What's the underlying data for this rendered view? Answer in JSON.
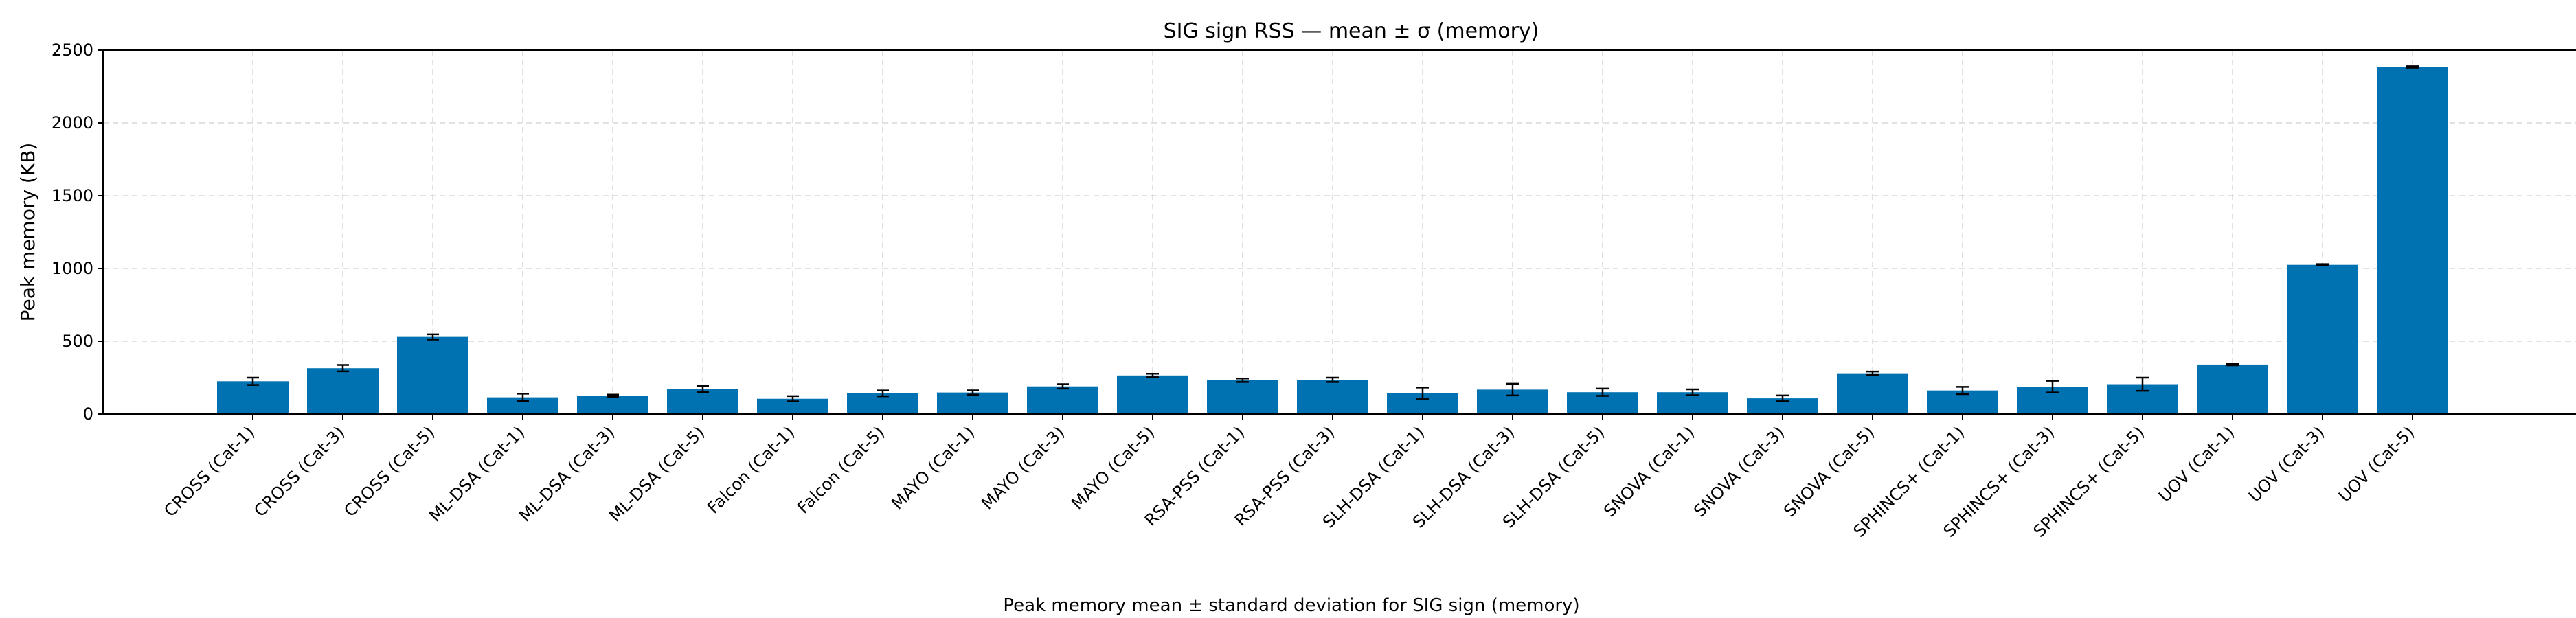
{
  "colors": {
    "bar": "#0072b2",
    "errorbar": "#000000",
    "grid": "#d9d9d9",
    "axis": "#000000",
    "background": "#ffffff"
  },
  "chart_data": {
    "type": "bar",
    "title": "SIG sign RSS — mean ± σ (memory)",
    "xlabel": "Peak memory mean ± standard deviation for SIG sign (memory)",
    "ylabel": "Peak memory (KB)",
    "ylim": [
      0,
      2500
    ],
    "yticks": [
      "0",
      "500",
      "1000",
      "1500",
      "2000",
      "2500"
    ],
    "grid": true,
    "legend": "none",
    "categories": [
      "CROSS (Cat-1)",
      "CROSS (Cat-3)",
      "CROSS (Cat-5)",
      "ML-DSA (Cat-1)",
      "ML-DSA (Cat-3)",
      "ML-DSA (Cat-5)",
      "Falcon (Cat-1)",
      "Falcon (Cat-5)",
      "MAYO (Cat-1)",
      "MAYO (Cat-3)",
      "MAYO (Cat-5)",
      "RSA-PSS (Cat-1)",
      "RSA-PSS (Cat-3)",
      "SLH-DSA (Cat-1)",
      "SLH-DSA (Cat-3)",
      "SLH-DSA (Cat-5)",
      "SNOVA (Cat-1)",
      "SNOVA (Cat-3)",
      "SNOVA (Cat-5)",
      "SPHINCS+ (Cat-1)",
      "SPHINCS+ (Cat-3)",
      "SPHINCS+ (Cat-5)",
      "UOV (Cat-1)",
      "UOV (Cat-3)",
      "UOV (Cat-5)"
    ],
    "values": [
      225,
      315,
      530,
      115,
      125,
      172,
      105,
      142,
      148,
      190,
      265,
      232,
      235,
      142,
      168,
      150,
      150,
      108,
      280,
      162,
      188,
      205,
      340,
      1025,
      2385
    ],
    "errors": [
      25,
      22,
      18,
      25,
      8,
      20,
      18,
      20,
      15,
      15,
      12,
      12,
      15,
      40,
      40,
      25,
      20,
      20,
      12,
      25,
      40,
      45,
      5,
      5,
      5
    ]
  }
}
